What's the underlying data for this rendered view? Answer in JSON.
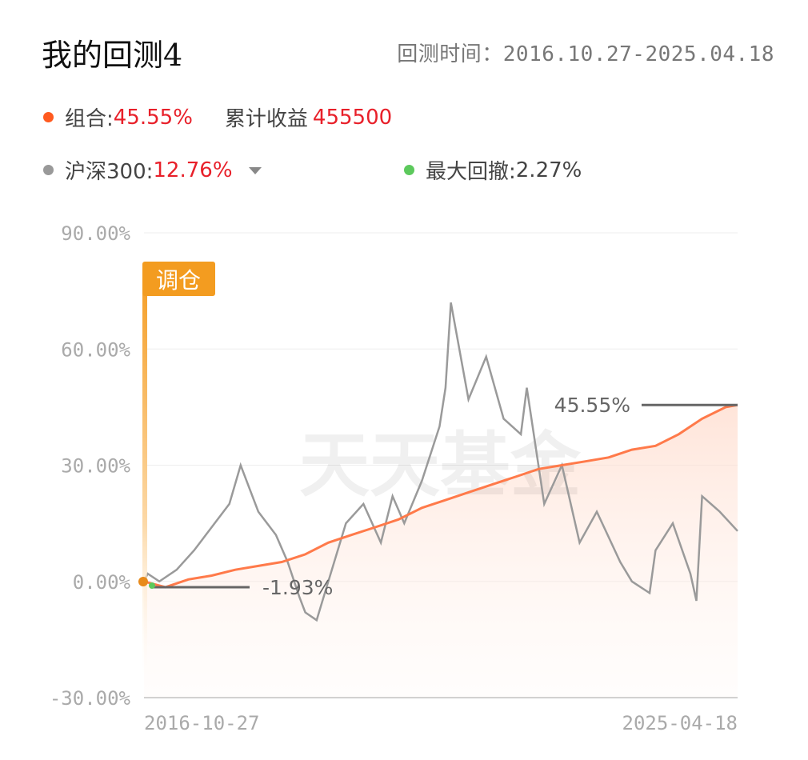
{
  "header": {
    "title": "我的回测4",
    "period_label": "回测时间：2016.10.27-2025.04.18"
  },
  "legend": {
    "portfolio": {
      "label": "组合:",
      "value": "45.55%",
      "profit_label": "累计收益",
      "profit_value": "455500",
      "color": "#ff5a1f"
    },
    "benchmark": {
      "label": "沪深300:",
      "value": "12.76%",
      "color": "#999999"
    },
    "drawdown": {
      "label": "最大回撤:",
      "value": "2.27%",
      "color": "#5cc95c"
    }
  },
  "chart": {
    "rebalance_label": "调仓",
    "watermark": "天天基金",
    "max_label": "45.55%",
    "min_label": "-1.93%"
  },
  "chart_data": {
    "type": "line",
    "x_start": "2016-10-27",
    "x_end": "2025-04-18",
    "ylim": [
      -30,
      90
    ],
    "yticks": [
      90,
      60,
      30,
      0,
      -30
    ],
    "ytick_labels": [
      "90.00%",
      "60.00%",
      "30.00%",
      "0.00%",
      "-30.00%"
    ],
    "xtick_labels": [
      "2016-10-27",
      "2025-04-18"
    ],
    "grid": true,
    "series": [
      {
        "name": "组合",
        "color": "#ff7a4a",
        "x": [
          "2016-10-27",
          "2017-02",
          "2017-06",
          "2017-10",
          "2018-02",
          "2018-06",
          "2018-10",
          "2019-02",
          "2019-06",
          "2019-10",
          "2020-02",
          "2020-06",
          "2020-10",
          "2021-02",
          "2021-06",
          "2021-10",
          "2022-02",
          "2022-06",
          "2022-10",
          "2023-02",
          "2023-06",
          "2023-10",
          "2024-02",
          "2024-06",
          "2024-10",
          "2025-02",
          "2025-04-18"
        ],
        "values": [
          0,
          -1.5,
          0.5,
          1.5,
          3,
          4,
          5,
          7,
          10,
          12,
          14,
          16,
          19,
          21,
          23,
          25,
          27,
          29,
          30,
          31,
          32,
          34,
          35,
          38,
          42,
          45,
          45.55
        ]
      },
      {
        "name": "沪深300",
        "color": "#9a9a9a",
        "x": [
          "2016-10-27",
          "2016-11",
          "2017-01",
          "2017-04",
          "2017-07",
          "2017-10",
          "2018-01",
          "2018-03",
          "2018-06",
          "2018-09",
          "2018-11",
          "2019-01",
          "2019-02",
          "2019-04",
          "2019-06",
          "2019-09",
          "2019-12",
          "2020-03",
          "2020-05",
          "2020-07",
          "2020-10",
          "2021-01",
          "2021-02",
          "2021-03",
          "2021-06",
          "2021-09",
          "2021-12",
          "2022-03",
          "2022-04",
          "2022-07",
          "2022-10",
          "2023-01",
          "2023-04",
          "2023-08",
          "2023-10",
          "2024-01",
          "2024-02",
          "2024-05",
          "2024-08",
          "2024-09",
          "2024-10",
          "2025-01",
          "2025-04-18"
        ],
        "values": [
          0,
          2,
          0,
          3,
          8,
          14,
          20,
          30,
          18,
          12,
          5,
          -4,
          -8,
          -10,
          0,
          15,
          20,
          10,
          22,
          15,
          26,
          40,
          50,
          72,
          47,
          58,
          42,
          38,
          50,
          20,
          30,
          10,
          18,
          5,
          0,
          -3,
          8,
          15,
          2,
          -5,
          22,
          18,
          13
        ]
      }
    ]
  }
}
